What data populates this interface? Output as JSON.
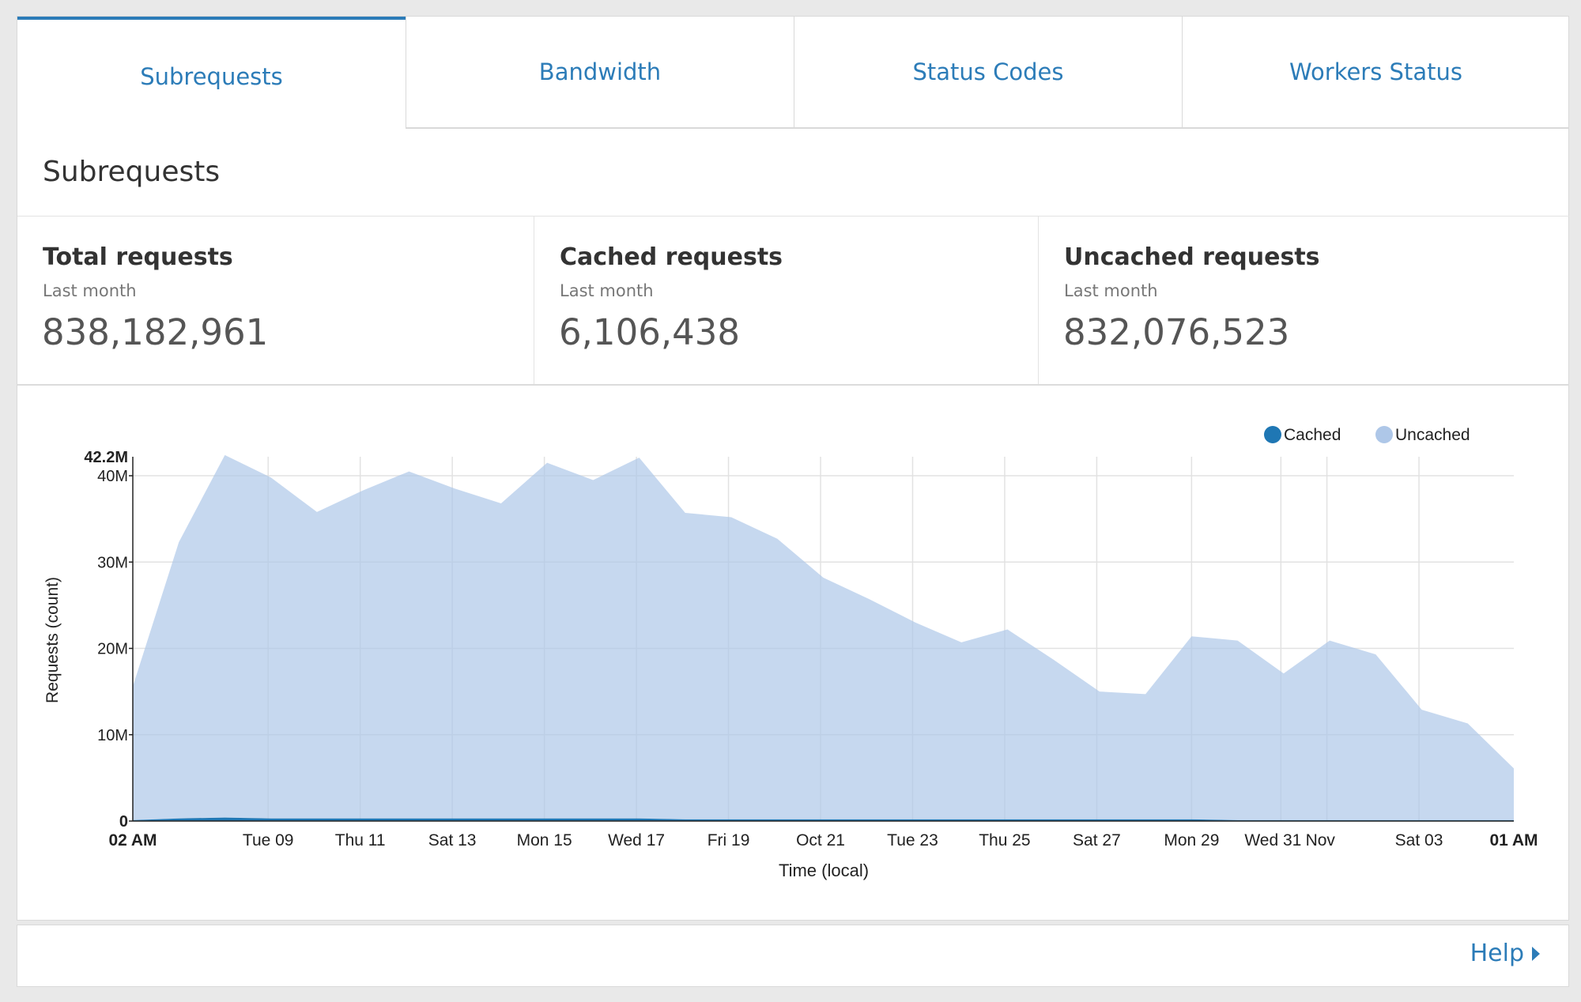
{
  "tabs": [
    {
      "label": "Subrequests",
      "active": true
    },
    {
      "label": "Bandwidth",
      "active": false
    },
    {
      "label": "Status Codes",
      "active": false
    },
    {
      "label": "Workers Status",
      "active": false
    }
  ],
  "section_title": "Subrequests",
  "stats": [
    {
      "title": "Total requests",
      "period": "Last month",
      "value": "838,182,961"
    },
    {
      "title": "Cached requests",
      "period": "Last month",
      "value": "6,106,438"
    },
    {
      "title": "Uncached requests",
      "period": "Last month",
      "value": "832,076,523"
    }
  ],
  "legend": [
    {
      "label": "Cached",
      "color": "#1f77b4"
    },
    {
      "label": "Uncached",
      "color": "#aec7e8"
    }
  ],
  "help_label": "Help",
  "chart_data": {
    "type": "area",
    "xlabel": "Time (local)",
    "ylabel": "Requests (count)",
    "ylim": [
      0,
      42200000
    ],
    "y_ticks": [
      "0",
      "10M",
      "20M",
      "30M",
      "40M"
    ],
    "y_max_label": "42.2M",
    "x_ticks": [
      "02 AM",
      "Tue 09",
      "Thu 11",
      "Sat 13",
      "Mon 15",
      "Wed 17",
      "Fri 19",
      "Oct 21",
      "Tue 23",
      "Thu 25",
      "Sat 27",
      "Mon 29",
      "Wed 31",
      "Nov",
      "Sat 03",
      "01 AM"
    ],
    "grid": true,
    "legend_position": "top-right",
    "series": [
      {
        "name": "Cached",
        "color": "#1f77b4",
        "values": [
          0.1,
          0.3,
          0.4,
          0.3,
          0.3,
          0.3,
          0.3,
          0.3,
          0.3,
          0.3,
          0.3,
          0.3,
          0.2,
          0.2,
          0.2,
          0.2,
          0.2,
          0.2,
          0.2,
          0.2,
          0.2,
          0.2,
          0.2,
          0.2,
          0.1,
          0.1,
          0.1,
          0.1,
          0.1,
          0.1,
          0.1
        ]
      },
      {
        "name": "Uncached",
        "color": "#aec7e8",
        "values": [
          15.5,
          32.0,
          42.0,
          39.5,
          35.5,
          38.0,
          40.2,
          38.2,
          36.5,
          41.2,
          39.2,
          41.8,
          35.5,
          35.0,
          32.5,
          28.0,
          25.5,
          22.8,
          20.5,
          22.0,
          18.5,
          14.8,
          14.5,
          21.2,
          20.8,
          17.0,
          20.8,
          19.2,
          12.8,
          11.2,
          6.0
        ]
      }
    ],
    "units": "M"
  }
}
